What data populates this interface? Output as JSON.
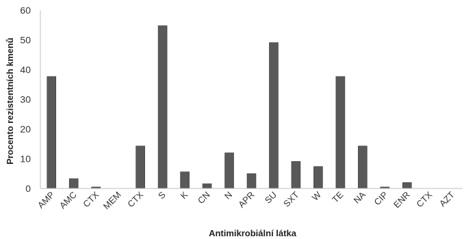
{
  "chart_data": {
    "type": "bar",
    "xlabel": "Antimikrobiální látka",
    "ylabel": "Procento rezistentních kmenů",
    "ylim": [
      0,
      60
    ],
    "yticks": [
      "0",
      "10",
      "20",
      "30",
      "40",
      "50",
      "60"
    ],
    "grid": false,
    "legend": "none",
    "bar_color": "#595959",
    "categories": [
      "AMP",
      "AMC",
      "CTX",
      "MEM",
      "CTX",
      "S",
      "K",
      "CN",
      "N",
      "APR",
      "SU",
      "SXT",
      "W",
      "TE",
      "NA",
      "CIP",
      "ENR",
      "CTX",
      "AZT"
    ],
    "values": [
      37.7,
      3.3,
      0.5,
      0,
      14.3,
      54.8,
      5.6,
      1.6,
      12,
      5,
      49.1,
      9.1,
      7.4,
      37.7,
      14.3,
      0.5,
      2,
      0,
      0
    ]
  }
}
